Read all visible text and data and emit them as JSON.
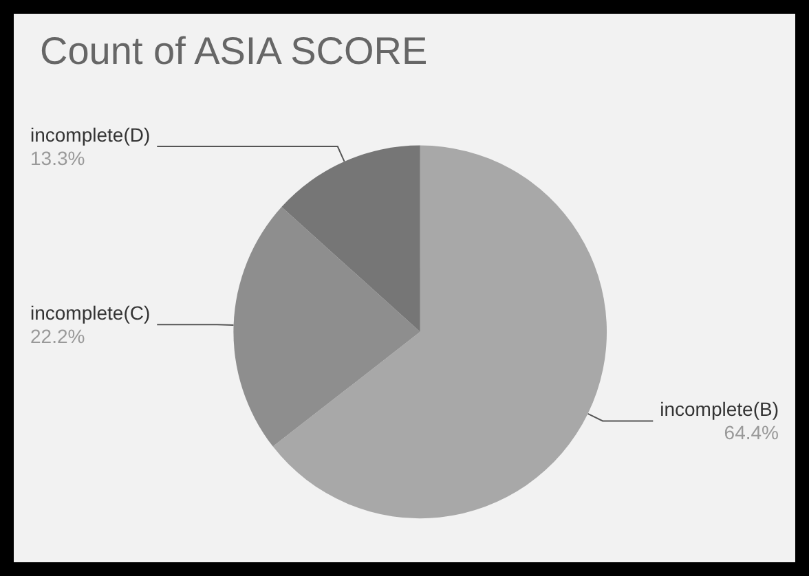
{
  "chart_data": {
    "type": "pie",
    "title": "Count of ASIA SCORE",
    "categories": [
      "incomplete(B)",
      "incomplete(C)",
      "incomplete(D)"
    ],
    "values": [
      64.4,
      22.2,
      13.3
    ],
    "colors": [
      "#a8a8a8",
      "#8e8e8e",
      "#767676"
    ],
    "value_labels": [
      "64.4%",
      "22.2%",
      "13.3%"
    ],
    "legend": false
  }
}
